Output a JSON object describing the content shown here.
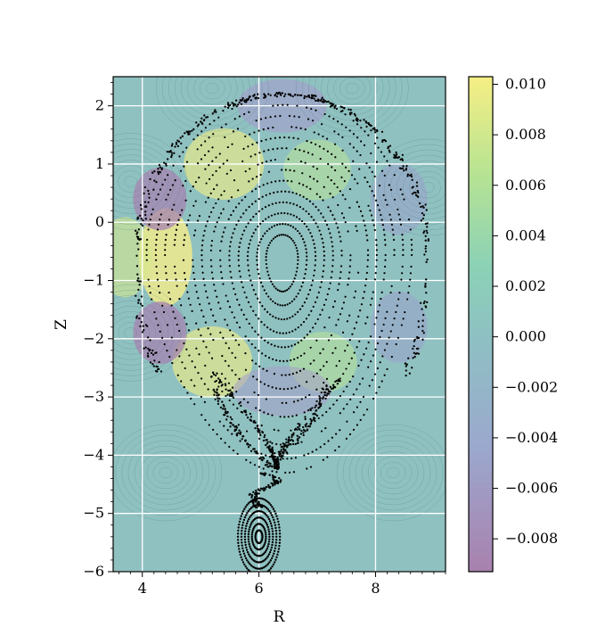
{
  "chart_data": {
    "type": "heatmap",
    "title": "",
    "xlabel": "R",
    "ylabel": "Z",
    "xlim": [
      3.5,
      9.2
    ],
    "ylim": [
      -6.0,
      2.5
    ],
    "x_ticks": [
      4,
      6,
      8
    ],
    "x_tick_labels": [
      "4",
      "6",
      "8"
    ],
    "y_ticks": [
      2,
      1,
      0,
      -1,
      -2,
      -3,
      -4,
      -5,
      -6
    ],
    "y_tick_labels": [
      "2",
      "1",
      "0",
      "−1",
      "−2",
      "−3",
      "−4",
      "−5",
      "−6"
    ],
    "grid": true,
    "colormap": "viridis (alpha 0.5)",
    "colorbar": {
      "range": [
        -0.0093,
        0.0103
      ],
      "ticks": [
        0.01,
        0.008,
        0.006,
        0.004,
        0.002,
        0.0,
        -0.002,
        -0.004,
        -0.006,
        -0.008
      ],
      "tick_labels": [
        "0.010",
        "0.008",
        "0.006",
        "0.004",
        "0.002",
        "0.000",
        "−0.002",
        "−0.004",
        "−0.006",
        "−0.008"
      ]
    },
    "poincare_overlay": {
      "magnetic_axis": [
        6.4,
        -0.65
      ],
      "separatrix_x_point": [
        6.2,
        -4.2
      ],
      "divertor_island_center": [
        6.0,
        -5.5
      ],
      "boundary_extent": {
        "r_min": 3.9,
        "r_max": 8.9,
        "z_min": -4.2,
        "z_max": 2.2
      },
      "marker_color": "#000000"
    }
  }
}
